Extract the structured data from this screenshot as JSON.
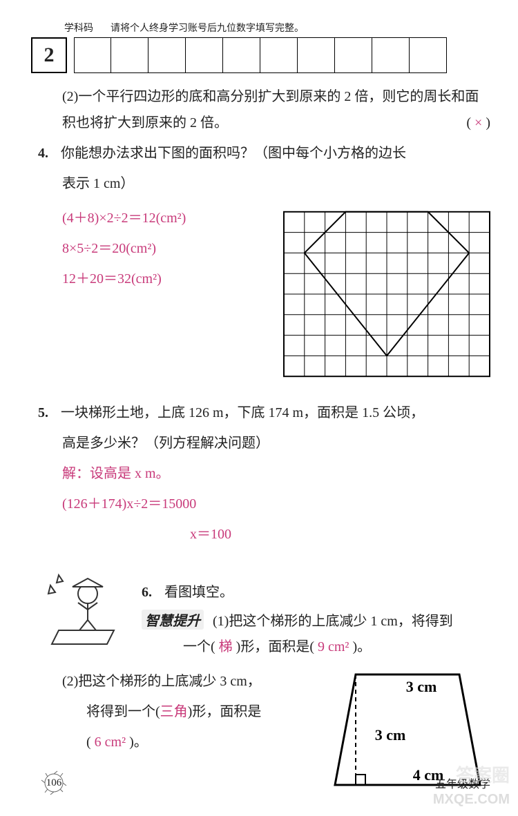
{
  "header": {
    "subject_label": "学科码",
    "caption": "请将个人终身学习账号后九位数字填写完整。",
    "subject_code": "2"
  },
  "q2_cont": {
    "text": "(2)一个平行四边形的底和高分别扩大到原来的 2 倍，则它的周长和面积也将扩大到原来的 2 倍。",
    "mark_open": "(",
    "mark": "×",
    "mark_close": ")"
  },
  "q4": {
    "num": "4.",
    "stem1": "你能想办法求出下图的面积吗？（图中每个小方格的边长",
    "stem2": "表示 1 cm）",
    "work1": "(4＋8)×2÷2＝12(cm²)",
    "work2": "8×5÷2＝20(cm²)",
    "work3": "12＋20＝32(cm²)",
    "grid": {
      "cols": 10,
      "rows": 8,
      "cell": 30,
      "poly": [
        [
          1,
          2
        ],
        [
          3,
          0
        ],
        [
          7,
          0
        ],
        [
          9,
          2
        ],
        [
          5,
          7
        ]
      ],
      "stroke": "#000000"
    }
  },
  "q5": {
    "num": "5.",
    "stem1": "一块梯形土地，上底 126 m，下底 174 m，面积是 1.5 公顷，",
    "stem2": "高是多少米？（列方程解决问题）",
    "work1": "解：设高是 x m。",
    "work2": "(126＋174)x÷2＝15000",
    "work3": "x＝100"
  },
  "q6": {
    "section": "智慧提升",
    "num": "6.",
    "title": "看图填空。",
    "p1a": "(1)把这个梯形的上底减少 1 cm，将得到",
    "p1b_pre": "一个(",
    "p1_ans1": " 梯 ",
    "p1b_mid": ")形，面积是(",
    "p1_ans2": " 9 cm² ",
    "p1b_post": ")。",
    "p2a": "(2)把这个梯形的上底减少 3 cm，",
    "p2b_pre": "将得到一个(",
    "p2_ans1": "三角",
    "p2b_mid": ")形，面积是",
    "p2c_pre": "(",
    "p2_ans2": " 6 cm² ",
    "p2c_post": ")。",
    "trap": {
      "top": "3 cm",
      "height": "3 cm",
      "bottom": "4 cm"
    }
  },
  "footer": {
    "page": "106",
    "text": "五年级数学"
  },
  "watermark1": "MXQE.COM",
  "watermark2": "答案圈",
  "colors": {
    "answer": "#c83a7a",
    "text": "#222222"
  }
}
